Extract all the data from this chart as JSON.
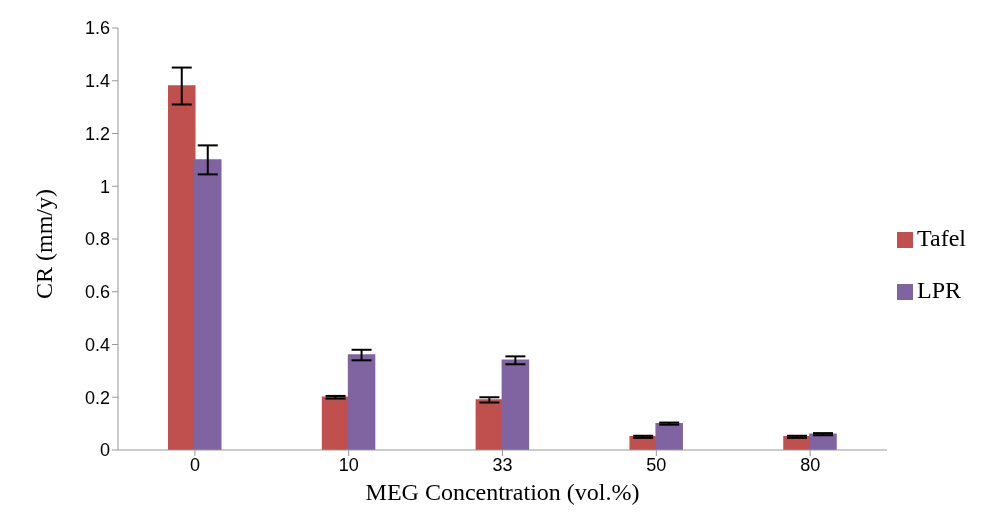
{
  "chart_data": {
    "type": "bar",
    "xlabel": "MEG Concentration (vol.%)",
    "ylabel": "CR (mm/y)",
    "categories": [
      "0",
      "10",
      "33",
      "50",
      "80"
    ],
    "series": [
      {
        "name": "Tafel",
        "color": "#c0504d",
        "values": [
          1.38,
          0.2,
          0.19,
          0.05,
          0.05
        ],
        "errors": [
          0.07,
          0.005,
          0.01,
          0.004,
          0.004
        ]
      },
      {
        "name": "LPR",
        "color": "#8064a2",
        "values": [
          1.1,
          0.36,
          0.34,
          0.1,
          0.06
        ],
        "errors": [
          0.055,
          0.02,
          0.015,
          0.004,
          0.004
        ]
      }
    ],
    "ylim": [
      0,
      1.6
    ],
    "yticks": [
      0,
      0.2,
      0.4,
      0.6,
      0.8,
      1,
      1.2,
      1.4,
      1.6
    ],
    "grid": false,
    "legend": "right"
  }
}
